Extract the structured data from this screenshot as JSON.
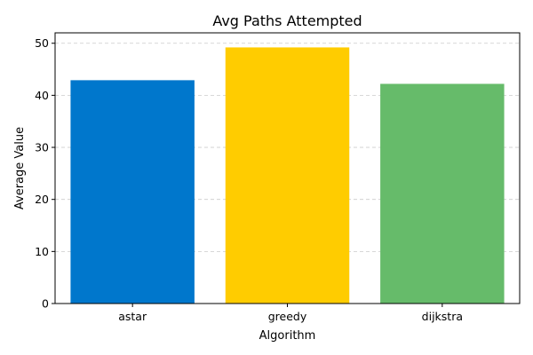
{
  "chart_data": {
    "type": "bar",
    "title": "Avg Paths Attempted",
    "xlabel": "Algorithm",
    "ylabel": "Average Value",
    "categories": [
      "astar",
      "greedy",
      "dijkstra"
    ],
    "values": [
      42.9,
      49.2,
      42.2
    ],
    "colors": [
      "#0077cc",
      "#ffcc00",
      "#66bb6a"
    ],
    "ylim": [
      0,
      52
    ],
    "yticks": [
      0,
      10,
      20,
      30,
      40,
      50
    ],
    "grid": "horizontal-dashed",
    "legend": "none"
  }
}
